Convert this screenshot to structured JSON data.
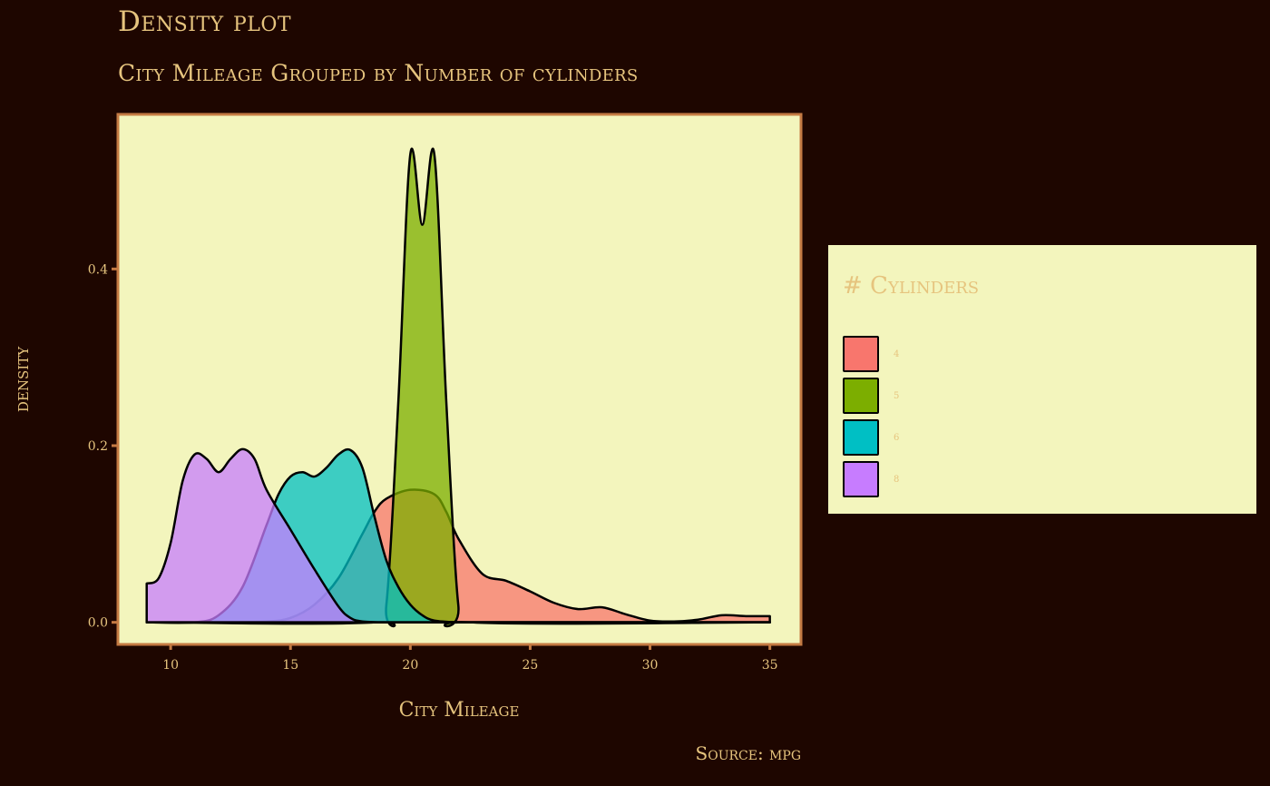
{
  "chart_data": {
    "type": "area",
    "title": "Density plot",
    "subtitle": "City Mileage Grouped by Number of cylinders",
    "xlabel": "City Mileage",
    "ylabel": "density",
    "caption": "Source: mpg",
    "xlim": [
      7.8,
      36.3
    ],
    "ylim": [
      -0.025,
      0.575
    ],
    "x_ticks": [
      10,
      15,
      20,
      25,
      30,
      35
    ],
    "y_ticks": [
      0.0,
      0.2,
      0.4
    ],
    "y_tick_labels": [
      "0.0",
      "0.2",
      "0.4"
    ],
    "grid": false,
    "legend": {
      "title": "# Cylinders",
      "placement": "right",
      "entries": [
        "4",
        "5",
        "6",
        "8"
      ]
    },
    "colors": {
      "background": "#1e0600",
      "panel": "#f3f5bd",
      "panel_border": "#c47a43",
      "text": "#e6c47e",
      "outline": "#000000"
    },
    "series": [
      {
        "name": "4",
        "color": "#f8766d",
        "x": [
          9,
          12,
          14,
          15,
          16,
          17,
          18,
          18.5,
          19,
          20,
          21,
          21.5,
          22,
          23,
          24,
          25,
          26,
          27,
          28,
          29,
          30,
          31,
          32,
          33,
          34,
          35
        ],
        "y": [
          0,
          0,
          0.001,
          0.005,
          0.02,
          0.05,
          0.1,
          0.125,
          0.14,
          0.15,
          0.145,
          0.125,
          0.095,
          0.055,
          0.047,
          0.035,
          0.022,
          0.015,
          0.017,
          0.009,
          0.002,
          0.001,
          0.003,
          0.008,
          0.007,
          0.007
        ]
      },
      {
        "name": "5",
        "color": "#7cae00",
        "x": [
          9,
          18.5,
          19,
          19.5,
          20,
          20.5,
          21,
          21.5,
          22,
          22.5,
          35
        ],
        "y": [
          0,
          0,
          0.02,
          0.25,
          0.53,
          0.45,
          0.53,
          0.25,
          0.02,
          0,
          0
        ]
      },
      {
        "name": "6",
        "color": "#00bfc4",
        "x": [
          9,
          11,
          12,
          13,
          14,
          14.5,
          15,
          15.5,
          16,
          16.5,
          17,
          17.5,
          18,
          18.5,
          19,
          19.5,
          20,
          20.5,
          21,
          22,
          23,
          35
        ],
        "y": [
          0,
          0,
          0.008,
          0.04,
          0.11,
          0.145,
          0.165,
          0.17,
          0.165,
          0.175,
          0.19,
          0.195,
          0.175,
          0.12,
          0.07,
          0.04,
          0.02,
          0.008,
          0.002,
          0,
          0,
          0
        ]
      },
      {
        "name": "8",
        "color": "#c77cff",
        "x": [
          9,
          9.5,
          10,
          10.5,
          11,
          11.5,
          12,
          12.5,
          13,
          13.5,
          14,
          15,
          16,
          17,
          17.5,
          18,
          19,
          20,
          35
        ],
        "y": [
          0.044,
          0.05,
          0.09,
          0.16,
          0.19,
          0.185,
          0.17,
          0.185,
          0.196,
          0.185,
          0.15,
          0.105,
          0.06,
          0.018,
          0.005,
          0.001,
          0,
          0,
          0
        ]
      }
    ]
  }
}
